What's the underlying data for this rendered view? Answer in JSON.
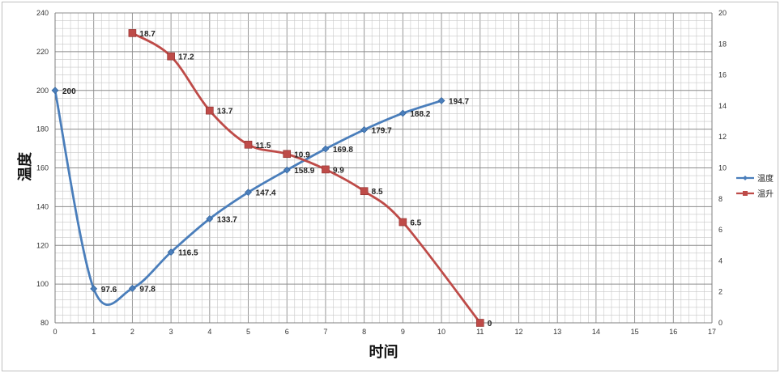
{
  "chart_data": {
    "type": "line",
    "xlabel": "时间",
    "ylabel": "温度",
    "xlim": [
      0,
      17
    ],
    "ylim": [
      80,
      240
    ],
    "y2lim": [
      0,
      20
    ],
    "x_ticks": [
      0,
      1,
      2,
      3,
      4,
      5,
      6,
      7,
      8,
      9,
      10,
      11,
      12,
      13,
      14,
      15,
      16,
      17
    ],
    "y_ticks": [
      80,
      100,
      120,
      140,
      160,
      180,
      200,
      220,
      240
    ],
    "y2_ticks": [
      0,
      2,
      4,
      6,
      8,
      10,
      12,
      14,
      16,
      18,
      20
    ],
    "grid": true,
    "legend_position": "right",
    "series": [
      {
        "name": "温度",
        "axis": "left",
        "color": "#4a7ebb",
        "marker": "diamond",
        "x": [
          0,
          1,
          2,
          3,
          4,
          5,
          6,
          7,
          8,
          9,
          10
        ],
        "values": [
          200,
          97.6,
          97.8,
          116.5,
          133.7,
          147.4,
          158.9,
          169.8,
          179.7,
          188.2,
          194.7
        ],
        "labels": [
          "200",
          "97.6",
          "97.8",
          "116.5",
          "133.7",
          "147.4",
          "158.9",
          "169.8",
          "179.7",
          "188.2",
          "194.7"
        ]
      },
      {
        "name": "温升",
        "axis": "right",
        "color": "#be4b48",
        "marker": "square",
        "x": [
          2,
          3,
          4,
          5,
          6,
          7,
          8,
          9,
          11
        ],
        "values": [
          18.7,
          17.2,
          13.7,
          11.5,
          10.9,
          9.9,
          8.5,
          6.5,
          0
        ],
        "labels": [
          "18.7",
          "17.2",
          "13.7",
          "11.5",
          "10.9",
          "9.9",
          "8.5",
          "6.5",
          "0"
        ]
      }
    ]
  }
}
